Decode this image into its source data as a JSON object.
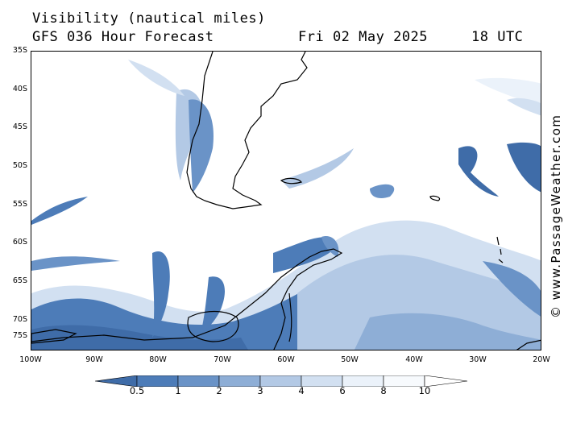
{
  "header": {
    "title": "Visibility (nautical miles)",
    "model": "GFS 036 Hour Forecast",
    "date": "Fri 02 May 2025",
    "time": "18 UTC"
  },
  "watermark": "© www.PassageWeather.com",
  "map": {
    "lat_labels": [
      "35S",
      "40S",
      "45S",
      "50S",
      "55S",
      "60S",
      "65S",
      "70S",
      "75S"
    ],
    "lon_labels": [
      "100W",
      "90W",
      "80W",
      "70W",
      "60W",
      "50W",
      "40W",
      "30W",
      "20W"
    ],
    "lat_range": [
      -35,
      -77
    ],
    "lon_range": [
      -100,
      -20
    ]
  },
  "legend": {
    "labels": [
      "0.5",
      "1",
      "2",
      "3",
      "4",
      "6",
      "8",
      "10"
    ],
    "colors": [
      "#3f6ca8",
      "#4d7cb8",
      "#6a93c7",
      "#8eaed6",
      "#b3c9e5",
      "#d2e0f1",
      "#ebf2fa",
      "#ffffff"
    ]
  }
}
